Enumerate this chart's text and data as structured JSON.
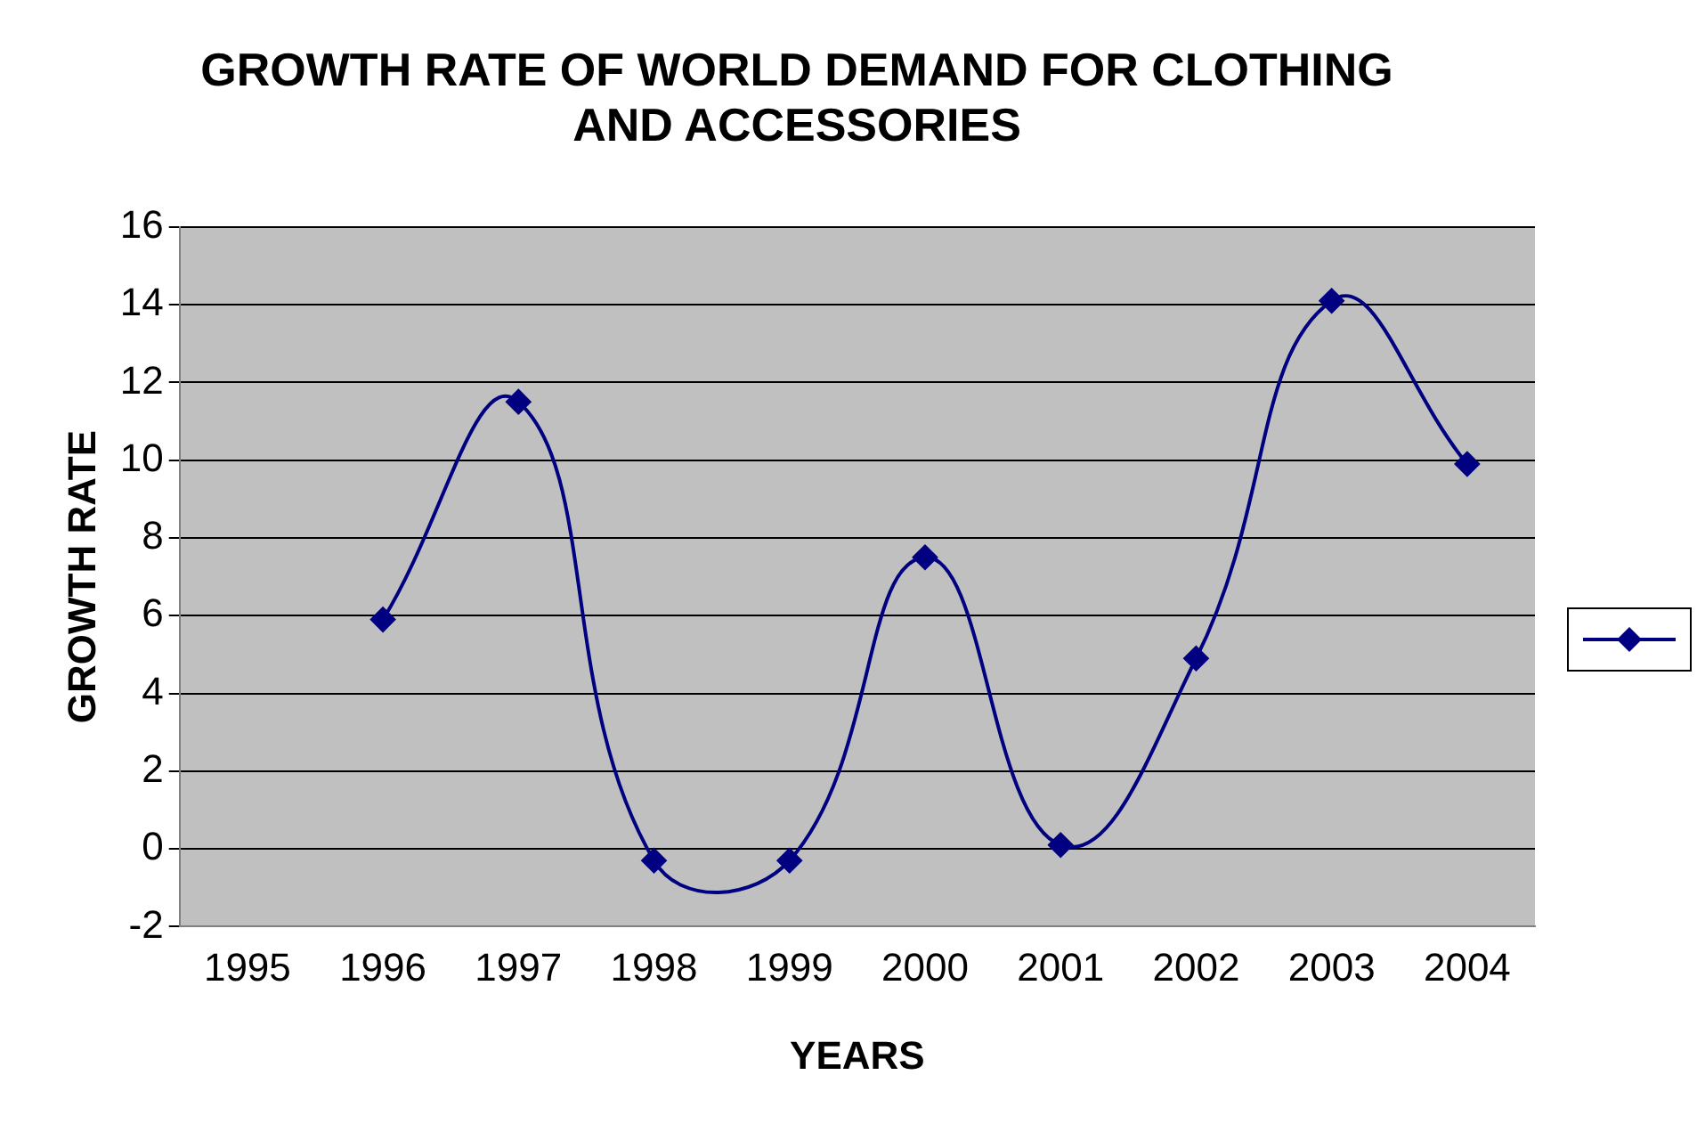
{
  "chart_data": {
    "type": "line",
    "title": "GROWTH RATE OF WORLD DEMAND FOR CLOTHING AND ACCESSORIES",
    "xlabel": "YEARS",
    "ylabel": "GROWTH RATE",
    "categories": [
      "1995",
      "1996",
      "1997",
      "1998",
      "1999",
      "2000",
      "2001",
      "2002",
      "2003",
      "2004"
    ],
    "series": [
      {
        "color": "#000080",
        "values": [
          null,
          5.9,
          11.5,
          -0.3,
          -0.3,
          7.5,
          0.1,
          4.9,
          14.1,
          9.9
        ]
      }
    ],
    "ylim": [
      -2,
      16
    ],
    "yticks": [
      -2,
      0,
      2,
      4,
      6,
      8,
      10,
      12,
      14,
      16
    ],
    "grid": "y",
    "marker": "diamond",
    "line_style": "solid"
  }
}
